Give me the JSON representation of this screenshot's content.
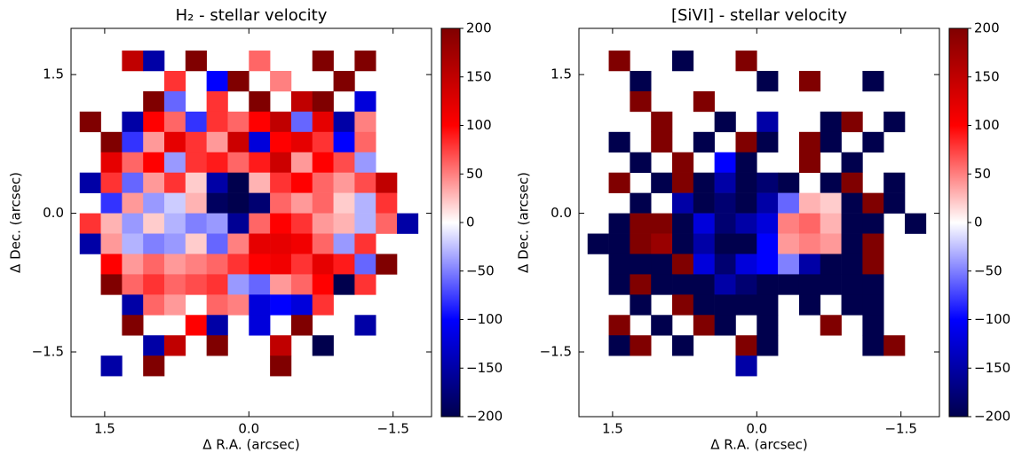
{
  "chart_data": [
    {
      "type": "heatmap",
      "title": "H₂ - stellar velocity",
      "xlabel": "Δ R.A. (arcsec)",
      "ylabel": "Δ Dec. (arcsec)",
      "cmap": "seismic",
      "x": [
        1.65,
        1.43,
        1.21,
        0.99,
        0.77,
        0.55,
        0.33,
        0.11,
        -0.11,
        -0.33,
        -0.55,
        -0.77,
        -0.99,
        -1.21,
        -1.43,
        -1.65
      ],
      "y": [
        1.65,
        1.43,
        1.21,
        0.99,
        0.77,
        0.55,
        0.33,
        0.11,
        -0.11,
        -0.33,
        -0.55,
        -0.77,
        -0.99,
        -1.21,
        -1.43,
        -1.65
      ],
      "z": [
        [
          null,
          null,
          150,
          -150,
          null,
          200,
          null,
          null,
          60,
          null,
          null,
          200,
          null,
          200,
          null,
          null
        ],
        [
          null,
          null,
          null,
          null,
          80,
          null,
          -100,
          200,
          null,
          50,
          null,
          null,
          200,
          null,
          null,
          null
        ],
        [
          null,
          null,
          null,
          200,
          -60,
          null,
          80,
          null,
          200,
          null,
          150,
          200,
          null,
          -120,
          null,
          null
        ],
        [
          200,
          null,
          -150,
          100,
          60,
          -80,
          80,
          60,
          100,
          150,
          -60,
          120,
          -150,
          50,
          null,
          null
        ],
        [
          null,
          200,
          -80,
          40,
          120,
          80,
          40,
          140,
          -120,
          100,
          120,
          80,
          -100,
          60,
          null,
          null
        ],
        [
          null,
          120,
          60,
          100,
          -40,
          80,
          90,
          60,
          90,
          140,
          40,
          100,
          70,
          -40,
          null,
          null
        ],
        [
          -150,
          80,
          -60,
          40,
          80,
          20,
          -150,
          -200,
          30,
          80,
          100,
          60,
          40,
          70,
          150,
          null
        ],
        [
          null,
          -80,
          40,
          -40,
          -20,
          30,
          -190,
          -200,
          -180,
          60,
          40,
          60,
          20,
          -30,
          80,
          null
        ],
        [
          80,
          30,
          -40,
          20,
          -30,
          -50,
          -40,
          -160,
          60,
          100,
          80,
          40,
          30,
          -30,
          60,
          -150
        ],
        [
          -150,
          40,
          -30,
          -50,
          -40,
          20,
          -60,
          50,
          120,
          120,
          110,
          60,
          -40,
          80,
          null,
          null
        ],
        [
          null,
          100,
          40,
          60,
          40,
          50,
          60,
          80,
          100,
          110,
          80,
          120,
          90,
          -60,
          200,
          null
        ],
        [
          null,
          200,
          60,
          80,
          60,
          70,
          80,
          -40,
          -60,
          40,
          60,
          100,
          -200,
          80,
          null,
          null
        ],
        [
          null,
          null,
          -150,
          60,
          40,
          null,
          60,
          50,
          -120,
          -100,
          -120,
          80,
          null,
          null,
          null,
          null
        ],
        [
          null,
          null,
          200,
          null,
          null,
          100,
          -150,
          null,
          -120,
          null,
          200,
          null,
          null,
          -150,
          null,
          null
        ],
        [
          null,
          null,
          null,
          -150,
          150,
          null,
          200,
          null,
          null,
          150,
          null,
          -200,
          null,
          null,
          null,
          null
        ],
        [
          null,
          -150,
          null,
          200,
          null,
          null,
          null,
          null,
          null,
          200,
          null,
          null,
          null,
          null,
          null,
          null
        ]
      ],
      "xlim": [
        1.85,
        -1.9
      ],
      "ylim": [
        -2.2,
        2.0
      ],
      "xticks": [
        {
          "value": 1.5,
          "label": "1.5"
        },
        {
          "value": 0,
          "label": "0.0"
        },
        {
          "value": -1.5,
          "label": "−1.5"
        }
      ],
      "yticks": [
        {
          "value": 1.5,
          "label": "1.5"
        },
        {
          "value": 0,
          "label": "0.0"
        },
        {
          "value": -1.5,
          "label": "−1.5"
        }
      ],
      "clim": [
        -200,
        200
      ],
      "cticks": [
        200,
        150,
        100,
        50,
        0,
        {
          "value": -50,
          "label": "−50"
        },
        {
          "value": -100,
          "label": "−100"
        },
        {
          "value": -150,
          "label": "−150"
        },
        {
          "value": -200,
          "label": "−200"
        }
      ]
    },
    {
      "type": "heatmap",
      "title": "[SiVI] - stellar velocity",
      "xlabel": "Δ R.A. (arcsec)",
      "ylabel": "Δ Dec. (arcsec)",
      "cmap": "seismic",
      "x": [
        1.65,
        1.43,
        1.21,
        0.99,
        0.77,
        0.55,
        0.33,
        0.11,
        -0.11,
        -0.33,
        -0.55,
        -0.77,
        -0.99,
        -1.21,
        -1.43,
        -1.65
      ],
      "y": [
        1.65,
        1.43,
        1.21,
        0.99,
        0.77,
        0.55,
        0.33,
        0.11,
        -0.11,
        -0.33,
        -0.55,
        -0.77,
        -0.99,
        -1.21,
        -1.43,
        -1.65
      ],
      "z": [
        [
          null,
          200,
          null,
          null,
          -200,
          null,
          null,
          200,
          null,
          null,
          null,
          null,
          null,
          null,
          null,
          null
        ],
        [
          null,
          null,
          -200,
          null,
          null,
          null,
          null,
          null,
          -200,
          null,
          200,
          null,
          null,
          -200,
          null,
          null
        ],
        [
          null,
          null,
          200,
          null,
          null,
          200,
          null,
          null,
          null,
          null,
          null,
          null,
          null,
          null,
          null,
          null
        ],
        [
          null,
          null,
          null,
          200,
          null,
          null,
          -200,
          null,
          -150,
          null,
          null,
          -200,
          200,
          null,
          -200,
          null
        ],
        [
          null,
          -200,
          null,
          200,
          null,
          -200,
          null,
          200,
          -200,
          null,
          200,
          -200,
          null,
          -200,
          null,
          null
        ],
        [
          null,
          null,
          -200,
          null,
          200,
          null,
          -100,
          -200,
          null,
          null,
          200,
          null,
          -200,
          null,
          null,
          null
        ],
        [
          null,
          200,
          null,
          -200,
          200,
          -200,
          -150,
          -200,
          -180,
          -200,
          null,
          -200,
          200,
          null,
          -200,
          null
        ],
        [
          null,
          null,
          -200,
          null,
          -150,
          -200,
          -180,
          -200,
          -150,
          -60,
          30,
          20,
          -200,
          200,
          -200,
          null
        ],
        [
          null,
          -200,
          200,
          200,
          -200,
          -120,
          -180,
          -150,
          -120,
          50,
          60,
          30,
          -200,
          -200,
          null,
          -200
        ],
        [
          -200,
          -200,
          200,
          180,
          -200,
          -150,
          -200,
          -200,
          -100,
          40,
          50,
          40,
          -200,
          200,
          null,
          null
        ],
        [
          null,
          -200,
          -200,
          -200,
          200,
          -120,
          -180,
          -120,
          -100,
          -50,
          -150,
          -200,
          -200,
          200,
          null,
          null
        ],
        [
          null,
          -200,
          200,
          -200,
          -200,
          -200,
          -150,
          -180,
          -200,
          -200,
          -200,
          -200,
          -200,
          -200,
          null,
          null
        ],
        [
          null,
          null,
          -200,
          null,
          200,
          -200,
          -200,
          -200,
          -200,
          null,
          -200,
          null,
          -200,
          -200,
          null,
          null
        ],
        [
          null,
          200,
          null,
          -200,
          null,
          200,
          -200,
          null,
          -200,
          null,
          null,
          200,
          null,
          -200,
          null,
          null
        ],
        [
          null,
          -200,
          200,
          null,
          -200,
          null,
          null,
          200,
          -200,
          null,
          null,
          null,
          null,
          -200,
          200,
          null
        ],
        [
          null,
          null,
          null,
          null,
          null,
          null,
          null,
          -150,
          null,
          null,
          null,
          null,
          null,
          null,
          null,
          null
        ]
      ],
      "xlim": [
        1.85,
        -1.9
      ],
      "ylim": [
        -2.2,
        2.0
      ],
      "xticks": [
        {
          "value": 1.5,
          "label": "1.5"
        },
        {
          "value": 0,
          "label": "0.0"
        },
        {
          "value": -1.5,
          "label": "−1.5"
        }
      ],
      "yticks": [
        {
          "value": 1.5,
          "label": "1.5"
        },
        {
          "value": 0,
          "label": "0.0"
        },
        {
          "value": -1.5,
          "label": "−1.5"
        }
      ],
      "clim": [
        -200,
        200
      ],
      "cticks": [
        200,
        150,
        100,
        50,
        0,
        {
          "value": -50,
          "label": "−50"
        },
        {
          "value": -100,
          "label": "−100"
        },
        {
          "value": -150,
          "label": "−150"
        },
        {
          "value": -200,
          "label": "−200"
        }
      ]
    }
  ]
}
